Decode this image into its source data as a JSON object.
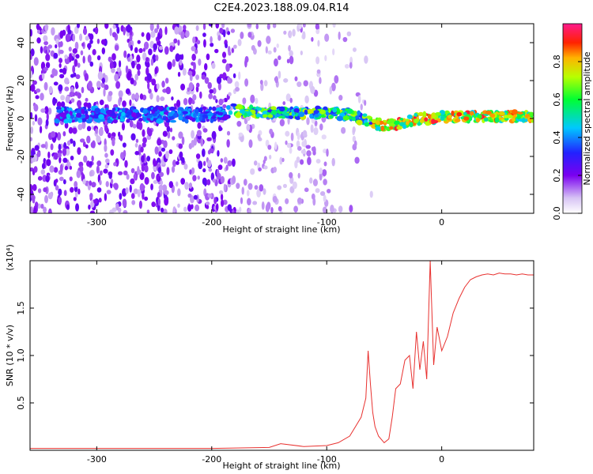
{
  "title": "C2E4.2023.188.09.04.R14",
  "chart_data": [
    {
      "type": "heatmap",
      "xlabel": "Height of straight line (km)",
      "ylabel": "Frequency (Hz)",
      "xlim": [
        -358,
        80
      ],
      "ylim": [
        -50,
        50
      ],
      "xticks": [
        -300,
        -200,
        -100,
        0
      ],
      "yticks": [
        -40,
        -20,
        0,
        20,
        40
      ],
      "grid": false,
      "colorbar": {
        "label": "Normalized spectral amplitude",
        "range": [
          0.0,
          1.0
        ],
        "ticks": [
          0.0,
          0.2,
          0.4,
          0.6,
          0.8
        ],
        "tick_labels": [
          "0.0",
          "0.2",
          "0.4",
          "0.6",
          "0.8"
        ],
        "colormap": "rainbow (white to violet to blue to cyan to green to yellow to red to magenta)"
      },
      "description_values": {
        "center_frequency_track": {
          "x": [
            -330,
            -300,
            -250,
            -200,
            -180,
            -150,
            -120,
            -100,
            -80,
            -70,
            -60,
            -50,
            -40,
            -30,
            -20,
            -10,
            0,
            20,
            40,
            60,
            80
          ],
          "y": [
            2,
            2,
            2,
            2,
            4,
            3,
            3,
            3,
            2,
            0,
            -2,
            -4,
            -3,
            -2,
            0,
            0,
            1,
            1,
            1,
            1,
            1
          ]
        }
      }
    },
    {
      "type": "line",
      "xlabel": "Height of straight line (km)",
      "ylabel": "SNR (10 * v/v)",
      "y_multiplier": "(x10⁴)",
      "xlim": [
        -358,
        80
      ],
      "ylim": [
        0,
        2.0
      ],
      "xticks": [
        -300,
        -200,
        -100,
        0
      ],
      "yticks": [
        0.5,
        1.0,
        1.5
      ],
      "ytick_labels": [
        "0.5",
        "1.0",
        "1.5"
      ],
      "grid": false,
      "series": [
        {
          "color": "#e8312f",
          "x": [
            -358,
            -300,
            -250,
            -200,
            -150,
            -140,
            -120,
            -100,
            -90,
            -80,
            -75,
            -70,
            -66,
            -64,
            -62,
            -60,
            -58,
            -55,
            -50,
            -46,
            -43,
            -40,
            -36,
            -32,
            -28,
            -25,
            -22,
            -19,
            -16,
            -13,
            -10,
            -7,
            -4,
            0,
            5,
            10,
            15,
            20,
            25,
            30,
            35,
            40,
            45,
            50,
            55,
            60,
            65,
            70,
            75,
            80
          ],
          "y": [
            0.02,
            0.02,
            0.02,
            0.02,
            0.03,
            0.07,
            0.04,
            0.05,
            0.08,
            0.15,
            0.25,
            0.35,
            0.55,
            1.05,
            0.7,
            0.4,
            0.25,
            0.15,
            0.08,
            0.12,
            0.35,
            0.65,
            0.7,
            0.95,
            1.0,
            0.65,
            1.25,
            0.85,
            1.15,
            0.75,
            2.0,
            0.9,
            1.3,
            1.05,
            1.2,
            1.45,
            1.6,
            1.72,
            1.8,
            1.83,
            1.85,
            1.86,
            1.85,
            1.87,
            1.86,
            1.86,
            1.85,
            1.86,
            1.85,
            1.85
          ]
        }
      ]
    }
  ]
}
